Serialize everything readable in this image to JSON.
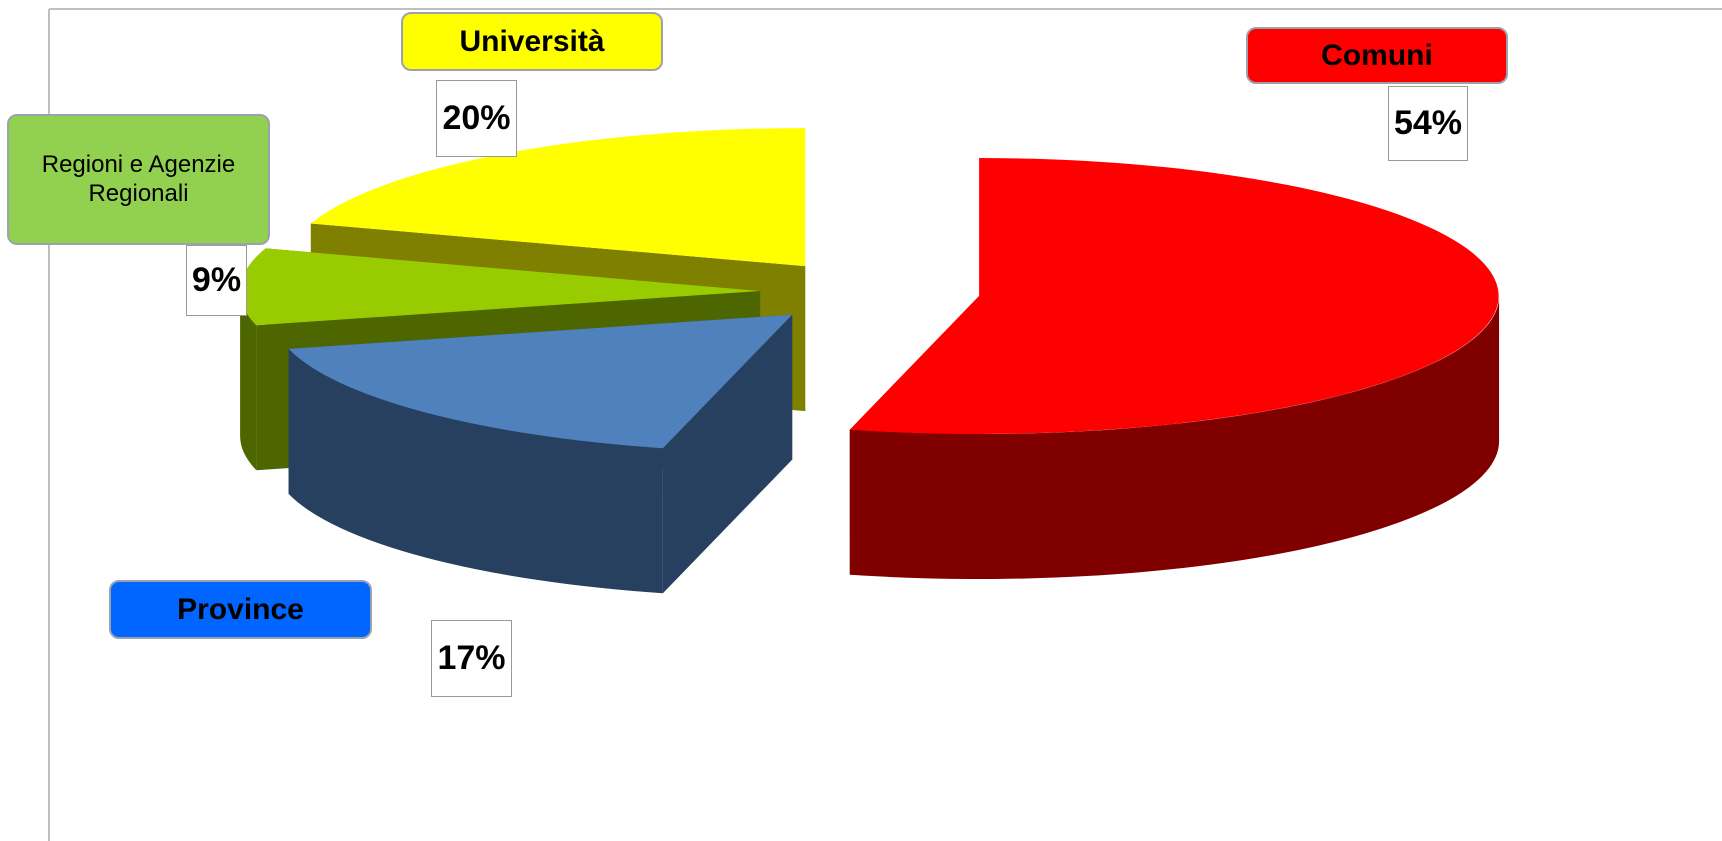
{
  "chart_data": {
    "type": "pie3d",
    "categories": [
      "Comuni",
      "Province",
      "Regioni e Agenzie Regionali",
      "Università"
    ],
    "values": [
      54,
      17,
      9,
      20
    ],
    "value_labels": [
      "54%",
      "17%",
      "9%",
      "20%"
    ],
    "colors": [
      "#ff0000",
      "#4f81bd",
      "#99cc00",
      "#ffff00"
    ],
    "side_colors": [
      "#800000",
      "#28405f",
      "#4d6600",
      "#808000"
    ],
    "label_colors": [
      "#ff0000",
      "#0066ff",
      "#92d050",
      "#ffff00"
    ]
  }
}
